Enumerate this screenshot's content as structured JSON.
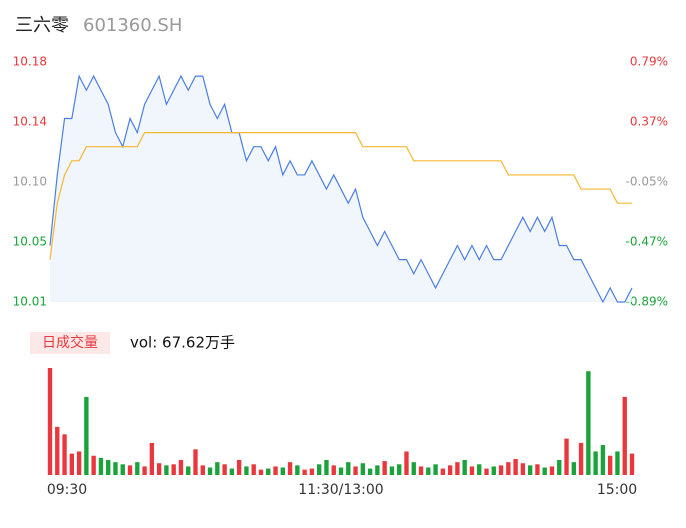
{
  "chart_data": {
    "type": "line",
    "title": "三六零",
    "subtitle": "601360.SH",
    "categories": [
      "09:30",
      null,
      null,
      null,
      null,
      null,
      null,
      null,
      null,
      null,
      null,
      null,
      null,
      null,
      null,
      null,
      null,
      null,
      null,
      null,
      null,
      null,
      null,
      null,
      null,
      null,
      null,
      null,
      null,
      null,
      null,
      null,
      null,
      null,
      null,
      null,
      null,
      null,
      null,
      null,
      "11:30/13:00",
      null,
      null,
      null,
      null,
      null,
      null,
      null,
      null,
      null,
      null,
      null,
      null,
      null,
      null,
      null,
      null,
      null,
      null,
      null,
      null,
      null,
      null,
      null,
      null,
      null,
      null,
      null,
      null,
      null,
      null,
      null,
      null,
      null,
      null,
      null,
      null,
      null,
      null,
      null,
      "15:00"
    ],
    "series": [
      {
        "name": "price",
        "color": "#4a7fe0",
        "values": [
          10.05,
          10.1,
          10.14,
          10.14,
          10.17,
          10.16,
          10.17,
          10.16,
          10.15,
          10.13,
          10.12,
          10.14,
          10.13,
          10.15,
          10.16,
          10.17,
          10.15,
          10.16,
          10.17,
          10.16,
          10.17,
          10.17,
          10.15,
          10.14,
          10.15,
          10.13,
          10.13,
          10.11,
          10.12,
          10.12,
          10.11,
          10.12,
          10.1,
          10.11,
          10.1,
          10.1,
          10.11,
          10.1,
          10.09,
          10.1,
          10.09,
          10.08,
          10.09,
          10.07,
          10.06,
          10.05,
          10.06,
          10.05,
          10.04,
          10.04,
          10.03,
          10.04,
          10.03,
          10.02,
          10.03,
          10.04,
          10.05,
          10.04,
          10.05,
          10.04,
          10.05,
          10.04,
          10.04,
          10.05,
          10.06,
          10.07,
          10.06,
          10.07,
          10.06,
          10.07,
          10.05,
          10.05,
          10.04,
          10.04,
          10.03,
          10.02,
          10.01,
          10.02,
          10.01,
          10.01,
          10.02
        ]
      },
      {
        "name": "average",
        "color": "#f5b731",
        "values": [
          10.04,
          10.08,
          10.1,
          10.11,
          10.11,
          10.12,
          10.12,
          10.12,
          10.12,
          10.12,
          10.12,
          10.12,
          10.12,
          10.13,
          10.13,
          10.13,
          10.13,
          10.13,
          10.13,
          10.13,
          10.13,
          10.13,
          10.13,
          10.13,
          10.13,
          10.13,
          10.13,
          10.13,
          10.13,
          10.13,
          10.13,
          10.13,
          10.13,
          10.13,
          10.13,
          10.13,
          10.13,
          10.13,
          10.13,
          10.13,
          10.13,
          10.13,
          10.13,
          10.12,
          10.12,
          10.12,
          10.12,
          10.12,
          10.12,
          10.12,
          10.11,
          10.11,
          10.11,
          10.11,
          10.11,
          10.11,
          10.11,
          10.11,
          10.11,
          10.11,
          10.11,
          10.11,
          10.11,
          10.1,
          10.1,
          10.1,
          10.1,
          10.1,
          10.1,
          10.1,
          10.1,
          10.1,
          10.1,
          10.09,
          10.09,
          10.09,
          10.09,
          10.09,
          10.08,
          10.08,
          10.08
        ]
      }
    ],
    "ylim": [
      10.01,
      10.18
    ],
    "yticks": [
      {
        "value": 10.18,
        "label": "10.18"
      },
      {
        "value": 10.1375,
        "label": "10.14"
      },
      {
        "value": 10.095,
        "label": "10.10"
      },
      {
        "value": 10.0525,
        "label": "10.05"
      },
      {
        "value": 10.01,
        "label": "10.01"
      }
    ],
    "y2lim": [
      -0.89,
      0.79
    ],
    "y2ticks": [
      {
        "value": 0.79,
        "label": "0.79%"
      },
      {
        "value": 0.37,
        "label": "0.37%"
      },
      {
        "value": -0.05,
        "label": "-0.05%"
      },
      {
        "value": -0.47,
        "label": "-0.47%"
      },
      {
        "value": -0.89,
        "label": "-0.89%"
      }
    ],
    "up_color": "#e8383d",
    "down_color": "#1aa33a",
    "flat_color": "#999999",
    "volume": {
      "label": "日成交量",
      "text": "vol: 67.62万手",
      "values": [
        100,
        45,
        38,
        20,
        22,
        73,
        18,
        16,
        14,
        12,
        10,
        9,
        12,
        8,
        30,
        11,
        9,
        10,
        14,
        8,
        24,
        9,
        7,
        12,
        10,
        6,
        14,
        8,
        10,
        5,
        6,
        8,
        7,
        12,
        9,
        5,
        6,
        10,
        14,
        9,
        7,
        12,
        8,
        11,
        6,
        9,
        13,
        8,
        10,
        22,
        12,
        8,
        7,
        10,
        6,
        9,
        12,
        14,
        8,
        10,
        6,
        8,
        9,
        12,
        15,
        11,
        9,
        10,
        7,
        8,
        14,
        34,
        12,
        30,
        97,
        22,
        28,
        18,
        22,
        73,
        20
      ]
    }
  }
}
